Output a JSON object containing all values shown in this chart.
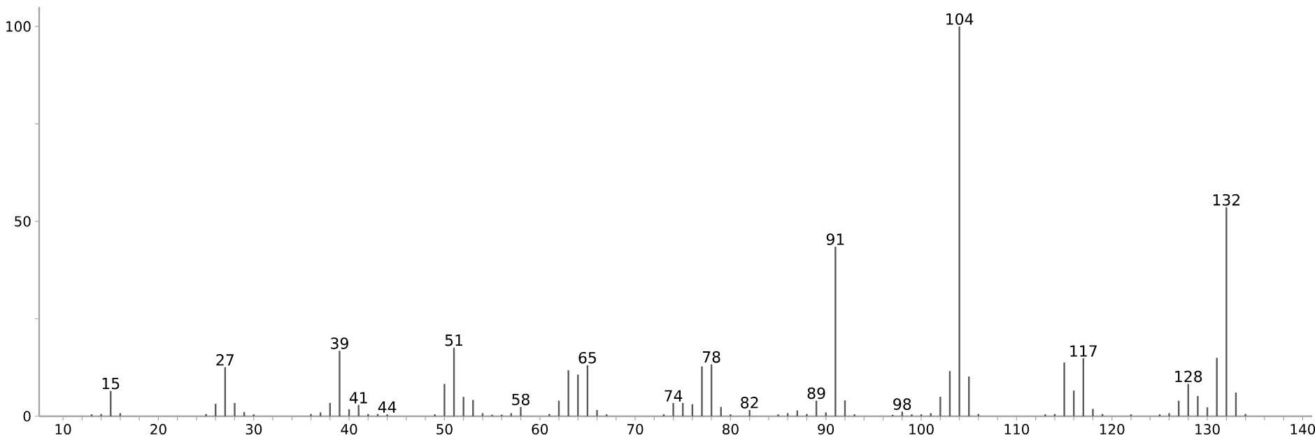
{
  "chart_data": {
    "type": "bar",
    "x": [
      13,
      14,
      15,
      16,
      25,
      26,
      27,
      28,
      29,
      30,
      36,
      37,
      38,
      39,
      40,
      41,
      42,
      43,
      44,
      49,
      50,
      51,
      52,
      53,
      54,
      55,
      56,
      57,
      58,
      61,
      62,
      63,
      64,
      65,
      66,
      67,
      73,
      74,
      75,
      76,
      77,
      78,
      79,
      80,
      82,
      85,
      86,
      87,
      88,
      89,
      90,
      91,
      92,
      93,
      97,
      98,
      99,
      100,
      101,
      102,
      103,
      104,
      105,
      106,
      113,
      114,
      115,
      116,
      117,
      118,
      119,
      122,
      125,
      126,
      127,
      128,
      129,
      130,
      131,
      132,
      133,
      134
    ],
    "values": [
      0.5,
      0.6,
      6.5,
      0.8,
      0.6,
      3.2,
      12.6,
      3.4,
      1.1,
      0.5,
      0.6,
      1,
      3.4,
      16.8,
      1.8,
      2.9,
      0.6,
      0.6,
      0.5,
      0.5,
      8.3,
      17.6,
      5,
      4.2,
      0.8,
      0.4,
      0.4,
      0.8,
      2.4,
      0.6,
      4,
      11.8,
      10.7,
      13.1,
      1.6,
      0.5,
      0.5,
      3.4,
      3.4,
      3.1,
      12.8,
      13.3,
      2.4,
      0.5,
      1.6,
      0.5,
      0.8,
      1.5,
      0.6,
      4,
      1,
      43.5,
      4.1,
      0.5,
      0.4,
      1.2,
      0.5,
      0.5,
      0.8,
      5,
      11.6,
      100,
      10.2,
      0.6,
      0.5,
      0.6,
      13.8,
      6.6,
      14.9,
      1.9,
      0.6,
      0.5,
      0.5,
      0.8,
      4,
      8.3,
      5.2,
      2.3,
      15,
      53.6,
      6.1,
      0.6
    ],
    "color": "#5a5a5a",
    "xlim": [
      7.5,
      141
    ],
    "ylim": [
      0,
      105
    ],
    "xticks": [
      10,
      {
        "value": 12,
        "label": null
      },
      {
        "value": 14,
        "label": null
      },
      {
        "value": 16,
        "label": null
      },
      {
        "value": 18,
        "label": null
      },
      20,
      {
        "value": 22,
        "label": null
      },
      {
        "value": 24,
        "label": null
      },
      {
        "value": 26,
        "label": null
      },
      {
        "value": 28,
        "label": null
      },
      30,
      {
        "value": 32,
        "label": null
      },
      {
        "value": 34,
        "label": null
      },
      {
        "value": 36,
        "label": null
      },
      {
        "value": 38,
        "label": null
      },
      40,
      {
        "value": 42,
        "label": null
      },
      {
        "value": 44,
        "label": null
      },
      {
        "value": 46,
        "label": null
      },
      {
        "value": 48,
        "label": null
      },
      50,
      {
        "value": 52,
        "label": null
      },
      {
        "value": 54,
        "label": null
      },
      {
        "value": 56,
        "label": null
      },
      {
        "value": 58,
        "label": null
      },
      60,
      {
        "value": 62,
        "label": null
      },
      {
        "value": 64,
        "label": null
      },
      {
        "value": 66,
        "label": null
      },
      {
        "value": 68,
        "label": null
      },
      70,
      {
        "value": 72,
        "label": null
      },
      {
        "value": 74,
        "label": null
      },
      {
        "value": 76,
        "label": null
      },
      {
        "value": 78,
        "label": null
      },
      80,
      {
        "value": 82,
        "label": null
      },
      {
        "value": 84,
        "label": null
      },
      {
        "value": 86,
        "label": null
      },
      {
        "value": 88,
        "label": null
      },
      90,
      {
        "value": 92,
        "label": null
      },
      {
        "value": 94,
        "label": null
      },
      {
        "value": 96,
        "label": null
      },
      {
        "value": 98,
        "label": null
      },
      100,
      {
        "value": 102,
        "label": null
      },
      {
        "value": 104,
        "label": null
      },
      {
        "value": 106,
        "label": null
      },
      {
        "value": 108,
        "label": null
      },
      110,
      {
        "value": 112,
        "label": null
      },
      {
        "value": 114,
        "label": null
      },
      {
        "value": 116,
        "label": null
      },
      {
        "value": 118,
        "label": null
      },
      120,
      {
        "value": 122,
        "label": null
      },
      {
        "value": 124,
        "label": null
      },
      {
        "value": 126,
        "label": null
      },
      {
        "value": 128,
        "label": null
      },
      130,
      {
        "value": 132,
        "label": null
      },
      {
        "value": 134,
        "label": null
      },
      {
        "value": 136,
        "label": null
      },
      {
        "value": 138,
        "label": null
      },
      140
    ],
    "yticks": [
      0,
      {
        "value": 25,
        "label": null
      },
      50,
      {
        "value": 75,
        "label": null
      },
      100
    ],
    "annotations": [
      {
        "text": "15",
        "x": 15,
        "y": 6.5
      },
      {
        "text": "27",
        "x": 27,
        "y": 12.6
      },
      {
        "text": "39",
        "x": 39,
        "y": 16.8
      },
      {
        "text": "41",
        "x": 41,
        "y": 2.9
      },
      {
        "text": "44",
        "x": 44,
        "y": 0.5
      },
      {
        "text": "51",
        "x": 51,
        "y": 17.6
      },
      {
        "text": "58",
        "x": 58,
        "y": 2.4
      },
      {
        "text": "65",
        "x": 65,
        "y": 13.1
      },
      {
        "text": "74",
        "x": 74,
        "y": 3.4
      },
      {
        "text": "78",
        "x": 78,
        "y": 13.3
      },
      {
        "text": "82",
        "x": 82,
        "y": 1.6
      },
      {
        "text": "89",
        "x": 89,
        "y": 4
      },
      {
        "text": "91",
        "x": 91,
        "y": 43.5
      },
      {
        "text": "98",
        "x": 98,
        "y": 1.2
      },
      {
        "text": "104",
        "x": 104,
        "y": 100
      },
      {
        "text": "117",
        "x": 117,
        "y": 14.9
      },
      {
        "text": "128",
        "x": 128,
        "y": 8.3
      },
      {
        "text": "132",
        "x": 132,
        "y": 53.6
      }
    ]
  }
}
